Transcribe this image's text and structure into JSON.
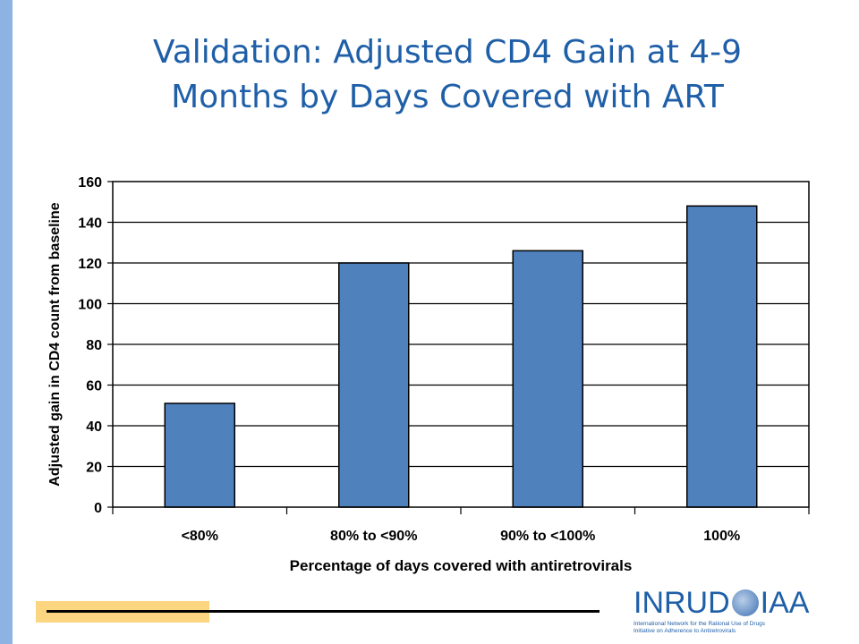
{
  "slide": {
    "title_line1": "Validation: Adjusted CD4 Gain at 4-9",
    "title_line2": "Months by Days Covered with ART"
  },
  "chart_data": {
    "type": "bar",
    "categories": [
      "<80%",
      "80% to <90%",
      "90% to <100%",
      "100%"
    ],
    "values": [
      51,
      120,
      126,
      148
    ],
    "xlabel": "Percentage of days covered with antiretrovirals",
    "ylabel": "Adjusted gain in CD4 count from baseline",
    "ylim": [
      0,
      160
    ],
    "yticks": [
      0,
      20,
      40,
      60,
      80,
      100,
      120,
      140,
      160
    ],
    "grid": true,
    "bar_color": "#4f81bd"
  },
  "logo": {
    "left_text": "INRUD",
    "right_text": "IAA",
    "subtitle_line1": "International Network for the Rational Use of Drugs",
    "subtitle_line2": "Initiative on Adherence to Antiretrovirals",
    "colors": {
      "brand": "#1f5fa8",
      "accent_bar": "#fcd581"
    }
  }
}
